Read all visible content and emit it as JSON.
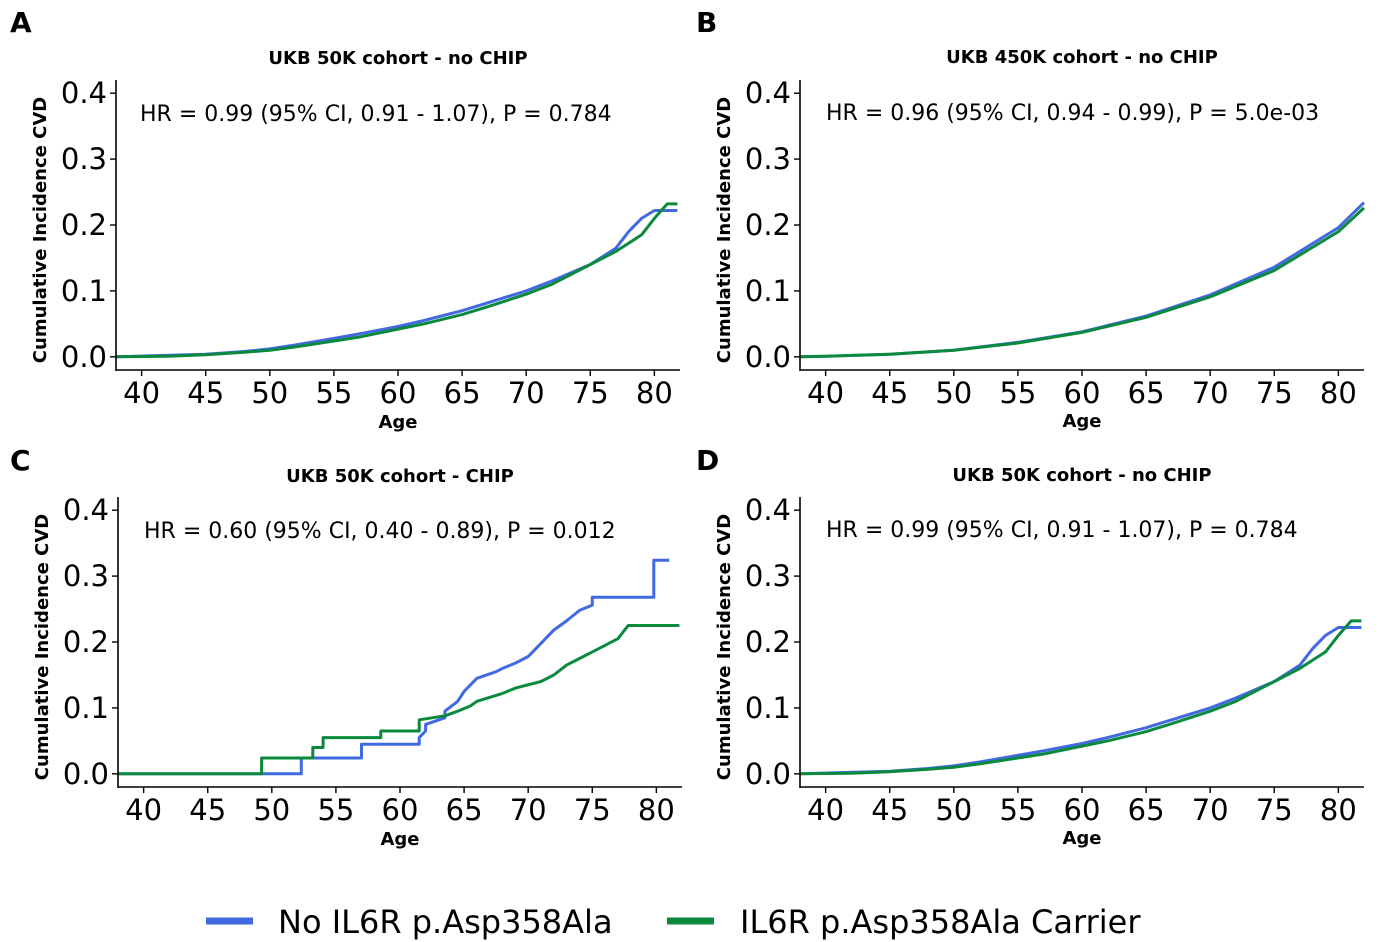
{
  "legend": [
    {
      "label": "No IL6R p.Asp358Ala",
      "color": "#4169E1"
    },
    {
      "label": "IL6R p.Asp358Ala Carrier",
      "color": "#0B8A3E"
    }
  ],
  "chart_data": [
    {
      "type": "line",
      "panel": "A",
      "title": "UKB 50K cohort - no CHIP",
      "annotation": "HR = 0.99 (95% CI, 0.91 - 1.07), P = 0.784",
      "xlabel": "Age",
      "ylabel": "Cumulative Incidence CVD",
      "xlim": [
        38,
        82
      ],
      "ylim": [
        -0.02,
        0.42
      ],
      "xticks": [
        40,
        45,
        50,
        55,
        60,
        65,
        70,
        75,
        80
      ],
      "yticks": [
        0.0,
        0.1,
        0.2,
        0.3,
        0.4
      ],
      "series": [
        {
          "name": "No IL6R p.Asp358Ala",
          "color": "#4169E1",
          "x": [
            38,
            41.5,
            45,
            48,
            50,
            52,
            55,
            57,
            60,
            62,
            65,
            67,
            70,
            72,
            75,
            77,
            78,
            79,
            80,
            81.8
          ],
          "y": [
            0,
            0.002,
            0.004,
            0.008,
            0.012,
            0.018,
            0.028,
            0.035,
            0.046,
            0.055,
            0.07,
            0.082,
            0.1,
            0.115,
            0.14,
            0.165,
            0.19,
            0.21,
            0.222,
            0.222
          ]
        },
        {
          "name": "IL6R p.Asp358Ala Carrier",
          "color": "#0B8A3E",
          "x": [
            38,
            42,
            45,
            48,
            50,
            52,
            55,
            57,
            60,
            62,
            65,
            67,
            70,
            72,
            75,
            77,
            79,
            80,
            81,
            81.8
          ],
          "y": [
            0,
            0.001,
            0.003,
            0.007,
            0.01,
            0.015,
            0.024,
            0.03,
            0.042,
            0.05,
            0.064,
            0.076,
            0.095,
            0.11,
            0.14,
            0.16,
            0.185,
            0.21,
            0.232,
            0.232
          ]
        }
      ]
    },
    {
      "type": "line",
      "panel": "B",
      "title": "UKB 450K cohort - no CHIP",
      "annotation": "HR = 0.96 (95% CI, 0.94 - 0.99), P = 5.0e-03",
      "xlabel": "Age",
      "ylabel": "Cumulative Incidence CVD",
      "xlim": [
        38,
        82
      ],
      "ylim": [
        -0.02,
        0.42
      ],
      "xticks": [
        40,
        45,
        50,
        55,
        60,
        65,
        70,
        75,
        80
      ],
      "yticks": [
        0.0,
        0.1,
        0.2,
        0.3,
        0.4
      ],
      "series": [
        {
          "name": "No IL6R p.Asp358Ala",
          "color": "#4169E1",
          "x": [
            38,
            40,
            45,
            50,
            55,
            60,
            65,
            70,
            75,
            80,
            82
          ],
          "y": [
            0,
            0.001,
            0.004,
            0.01,
            0.022,
            0.038,
            0.062,
            0.094,
            0.136,
            0.196,
            0.234
          ]
        },
        {
          "name": "IL6R p.Asp358Ala Carrier",
          "color": "#0B8A3E",
          "x": [
            38,
            40,
            45,
            50,
            55,
            60,
            65,
            70,
            75,
            80,
            82
          ],
          "y": [
            0,
            0.001,
            0.004,
            0.01,
            0.021,
            0.037,
            0.06,
            0.091,
            0.131,
            0.19,
            0.226
          ]
        }
      ]
    },
    {
      "type": "line",
      "panel": "C",
      "title": "UKB 50K cohort - CHIP",
      "annotation": "HR = 0.60 (95% CI, 0.40 - 0.89), P = 0.012",
      "xlabel": "Age",
      "ylabel": "Cumulative Incidence CVD",
      "xlim": [
        38,
        82
      ],
      "ylim": [
        -0.02,
        0.42
      ],
      "xticks": [
        40,
        45,
        50,
        55,
        60,
        65,
        70,
        75,
        80
      ],
      "yticks": [
        0.0,
        0.1,
        0.2,
        0.3,
        0.4
      ],
      "series": [
        {
          "name": "No IL6R p.Asp358Ala",
          "color": "#4169E1",
          "x": [
            38,
            52.3,
            52.3,
            57,
            57,
            61.5,
            61.5,
            62,
            62,
            63.5,
            63.5,
            64.5,
            65,
            65.5,
            66,
            67.5,
            68,
            69,
            70,
            70.5,
            71,
            71.5,
            72,
            72.5,
            73,
            73.5,
            74,
            75,
            75,
            79.8,
            79.8,
            81
          ],
          "y": [
            0,
            0,
            0.024,
            0.024,
            0.045,
            0.045,
            0.055,
            0.065,
            0.075,
            0.085,
            0.095,
            0.11,
            0.125,
            0.135,
            0.145,
            0.155,
            0.16,
            0.168,
            0.178,
            0.188,
            0.198,
            0.208,
            0.218,
            0.225,
            0.232,
            0.24,
            0.248,
            0.256,
            0.268,
            0.268,
            0.324,
            0.324
          ]
        },
        {
          "name": "IL6R p.Asp358Ala Carrier",
          "color": "#0B8A3E",
          "x": [
            38,
            49.2,
            49.2,
            53.2,
            53.2,
            54,
            54,
            58.5,
            58.5,
            61.5,
            61.5,
            63.5,
            64.5,
            65.5,
            66,
            68,
            69,
            71,
            72,
            73,
            74,
            75,
            76,
            77,
            77.8,
            81.8
          ],
          "y": [
            0,
            0,
            0.024,
            0.024,
            0.04,
            0.04,
            0.055,
            0.055,
            0.065,
            0.065,
            0.082,
            0.088,
            0.095,
            0.103,
            0.11,
            0.122,
            0.13,
            0.14,
            0.15,
            0.165,
            0.175,
            0.185,
            0.195,
            0.205,
            0.225,
            0.225
          ]
        }
      ]
    },
    {
      "type": "line",
      "panel": "D",
      "title": "UKB 50K cohort - no CHIP",
      "annotation": "HR = 0.99 (95% CI, 0.91 - 1.07), P = 0.784",
      "xlabel": "Age",
      "ylabel": "Cumulative Incidence CVD",
      "xlim": [
        38,
        82
      ],
      "ylim": [
        -0.02,
        0.42
      ],
      "xticks": [
        40,
        45,
        50,
        55,
        60,
        65,
        70,
        75,
        80
      ],
      "yticks": [
        0.0,
        0.1,
        0.2,
        0.3,
        0.4
      ],
      "series": [
        {
          "name": "No IL6R p.Asp358Ala",
          "color": "#4169E1",
          "x": [
            38,
            41.5,
            45,
            48,
            50,
            52,
            55,
            57,
            60,
            62,
            65,
            67,
            70,
            72,
            75,
            77,
            78,
            79,
            80,
            81.8
          ],
          "y": [
            0,
            0.002,
            0.004,
            0.008,
            0.012,
            0.018,
            0.028,
            0.035,
            0.046,
            0.055,
            0.07,
            0.082,
            0.1,
            0.115,
            0.14,
            0.165,
            0.19,
            0.21,
            0.222,
            0.222
          ]
        },
        {
          "name": "IL6R p.Asp358Ala Carrier",
          "color": "#0B8A3E",
          "x": [
            38,
            42,
            45,
            48,
            50,
            52,
            55,
            57,
            60,
            62,
            65,
            67,
            70,
            72,
            75,
            77,
            79,
            80,
            81,
            81.8
          ],
          "y": [
            0,
            0.001,
            0.003,
            0.007,
            0.01,
            0.015,
            0.024,
            0.03,
            0.042,
            0.05,
            0.064,
            0.076,
            0.095,
            0.11,
            0.14,
            0.16,
            0.185,
            0.21,
            0.232,
            0.232
          ]
        }
      ]
    }
  ]
}
